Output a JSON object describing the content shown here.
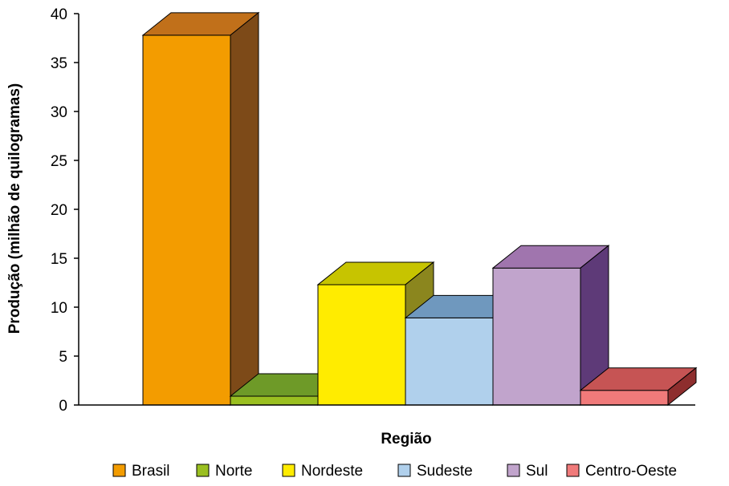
{
  "chart_data": {
    "type": "bar",
    "style": "3d",
    "categories": [
      "Brasil",
      "Norte",
      "Nordeste",
      "Sudeste",
      "Sul",
      "Centro-Oeste"
    ],
    "values": [
      37.8,
      0.9,
      12.3,
      8.9,
      14.0,
      1.5
    ],
    "colors": {
      "Brasil": {
        "front": "#F39C00",
        "top": "#C1701A",
        "side": "#7D4A18"
      },
      "Norte": {
        "front": "#9ABF20",
        "top": "#6E9A28",
        "side": "#4E6E1E"
      },
      "Nordeste": {
        "front": "#FFEC00",
        "top": "#C7C400",
        "side": "#8B861E"
      },
      "Sudeste": {
        "front": "#B0D0EC",
        "top": "#6F98BE",
        "side": "#4C6E94"
      },
      "Sul": {
        "front": "#C1A4CC",
        "top": "#A075AE",
        "side": "#5E3A78"
      },
      "Centro-Oeste": {
        "front": "#F07A7A",
        "top": "#C65454",
        "side": "#8E2E2E"
      }
    },
    "xlabel": "Região",
    "ylabel": "Produção (milhão de quilogramas)",
    "ylim": [
      0,
      40
    ],
    "yticks": [
      0,
      5,
      10,
      15,
      20,
      25,
      30,
      35,
      40
    ],
    "grid": false,
    "legend_position": "bottom"
  }
}
